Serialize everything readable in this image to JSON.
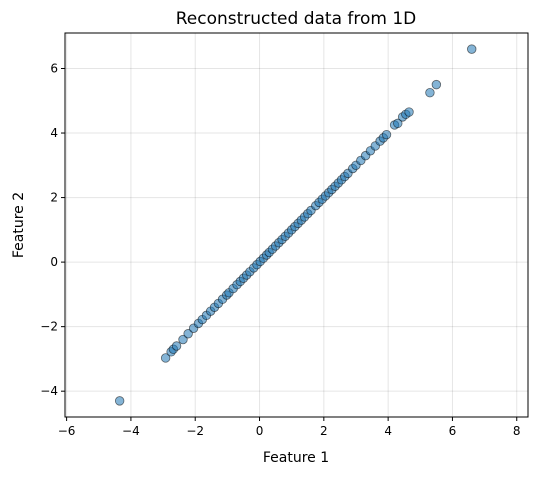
{
  "chart_data": {
    "type": "scatter",
    "title": "Reconstructed data from 1D",
    "x_label": "Feature 1",
    "y_label": "Feature 2",
    "series": [
      {
        "color": "#1f77b4",
        "x": [
          -4.35,
          -2.92,
          -2.75,
          -2.68,
          -2.58,
          -2.38,
          -2.22,
          -2.05,
          -1.9,
          -1.78,
          -1.65,
          -1.52,
          -1.4,
          -1.28,
          -1.15,
          -1.02,
          -0.95,
          -0.82,
          -0.7,
          -0.6,
          -0.5,
          -0.4,
          -0.3,
          -0.18,
          -0.08,
          0.02,
          0.12,
          0.22,
          0.3,
          0.4,
          0.5,
          0.6,
          0.7,
          0.8,
          0.9,
          1.0,
          1.1,
          1.2,
          1.3,
          1.4,
          1.5,
          1.6,
          1.75,
          1.85,
          1.95,
          2.05,
          2.15,
          2.25,
          2.35,
          2.45,
          2.55,
          2.65,
          2.75,
          2.9,
          3.0,
          3.15,
          3.3,
          3.45,
          3.6,
          3.75,
          3.85,
          3.95,
          4.2,
          4.3,
          4.45,
          4.55,
          4.65,
          5.3,
          5.5,
          6.6
        ],
        "values": [
          -4.3,
          -2.97,
          -2.78,
          -2.7,
          -2.6,
          -2.4,
          -2.22,
          -2.05,
          -1.9,
          -1.78,
          -1.65,
          -1.52,
          -1.4,
          -1.28,
          -1.15,
          -1.02,
          -0.95,
          -0.82,
          -0.7,
          -0.6,
          -0.5,
          -0.4,
          -0.3,
          -0.18,
          -0.08,
          0.02,
          0.12,
          0.22,
          0.3,
          0.4,
          0.5,
          0.6,
          0.7,
          0.8,
          0.9,
          1.0,
          1.1,
          1.2,
          1.3,
          1.4,
          1.5,
          1.6,
          1.75,
          1.85,
          1.95,
          2.05,
          2.15,
          2.25,
          2.35,
          2.45,
          2.55,
          2.65,
          2.75,
          2.9,
          3.0,
          3.15,
          3.3,
          3.45,
          3.6,
          3.75,
          3.85,
          3.95,
          4.25,
          4.3,
          4.5,
          4.58,
          4.65,
          5.25,
          5.5,
          6.6
        ]
      }
    ],
    "xlim": [
      -6.05,
      8.35
    ],
    "ylim": [
      -4.8,
      7.1
    ],
    "xticks": [
      {
        "value": -6,
        "label": "−6"
      },
      {
        "value": -4,
        "label": "−4"
      },
      {
        "value": -2,
        "label": "−2"
      },
      0,
      2,
      4,
      6,
      8
    ],
    "yticks": [
      {
        "value": -4,
        "label": "−4"
      },
      {
        "value": -2,
        "label": "−2"
      },
      0,
      2,
      4,
      6
    ],
    "grid": true
  }
}
